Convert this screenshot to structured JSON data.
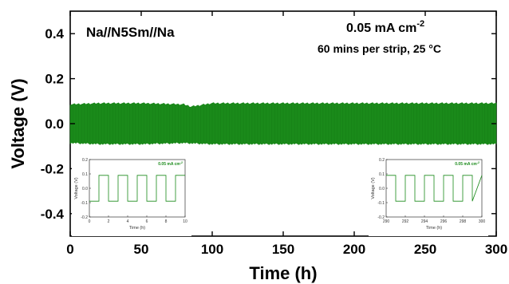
{
  "chart_data": [
    {
      "type": "line",
      "xlabel": "Time (h)",
      "ylabel": "Voltage (V)",
      "xlim": [
        0,
        300
      ],
      "ylim": [
        -0.5,
        0.5
      ],
      "xticks": [
        0,
        50,
        100,
        150,
        200,
        250,
        300
      ],
      "yticks": [
        -0.4,
        -0.2,
        0.0,
        0.2,
        0.4
      ],
      "sample_label": "Na//N5Sm//Na",
      "current_density": {
        "base": "0.05 mA cm",
        "exp": "-2"
      },
      "condition": "60 mins per strip, 25 °C",
      "series": [
        {
          "color": "#1a8a1a",
          "description_values": "square-wave voltage oscillating between approximately +0.09 V and -0.09 V over 0-300 h",
          "upper_envelope": [
            [
              0,
              0.085
            ],
            [
              20,
              0.09
            ],
            [
              50,
              0.09
            ],
            [
              80,
              0.085
            ],
            [
              85,
              0.075
            ],
            [
              100,
              0.09
            ],
            [
              150,
              0.09
            ],
            [
              200,
              0.09
            ],
            [
              250,
              0.09
            ],
            [
              300,
              0.09
            ]
          ],
          "lower_envelope": [
            [
              0,
              -0.085
            ],
            [
              20,
              -0.09
            ],
            [
              50,
              -0.09
            ],
            [
              80,
              -0.085
            ],
            [
              100,
              -0.09
            ],
            [
              150,
              -0.09
            ],
            [
              200,
              -0.09
            ],
            [
              250,
              -0.09
            ],
            [
              300,
              -0.09
            ]
          ]
        }
      ],
      "grid": false
    },
    {
      "type": "line",
      "inset": "left",
      "xlabel": "Time (h)",
      "ylabel": "Voltage (V)",
      "xlim": [
        0,
        10
      ],
      "ylim": [
        -0.2,
        0.2
      ],
      "xticks": [
        0,
        2,
        4,
        6,
        8,
        10
      ],
      "yticks": [
        -0.2,
        -0.1,
        0.0,
        0.1,
        0.2
      ],
      "annotation": {
        "base": "0.05 mA cm",
        "exp": "-2"
      },
      "series": [
        {
          "color": "#1a8a1a",
          "x": [
            0,
            1,
            1,
            2,
            2,
            3,
            3,
            4,
            4,
            5,
            5,
            6,
            6,
            7,
            7,
            8,
            8,
            9,
            9,
            10
          ],
          "y": [
            -0.09,
            -0.09,
            0.09,
            0.09,
            -0.09,
            -0.09,
            0.09,
            0.09,
            -0.09,
            -0.09,
            0.09,
            0.09,
            -0.09,
            -0.09,
            0.09,
            0.09,
            -0.09,
            -0.09,
            0.09,
            0.09
          ]
        }
      ]
    },
    {
      "type": "line",
      "inset": "right",
      "xlabel": "Time (h)",
      "ylabel": "Voltage (V)",
      "xlim": [
        290,
        300
      ],
      "ylim": [
        -0.2,
        0.2
      ],
      "xticks": [
        290,
        292,
        294,
        296,
        298,
        300
      ],
      "yticks": [
        -0.2,
        -0.1,
        0.0,
        0.1,
        0.2
      ],
      "annotation": {
        "base": "0.05 mA cm",
        "exp": "-2"
      },
      "series": [
        {
          "color": "#1a8a1a",
          "x": [
            290,
            291,
            291,
            292,
            292,
            293,
            293,
            294,
            294,
            295,
            295,
            296,
            296,
            297,
            297,
            298,
            298,
            299,
            299,
            300
          ],
          "y": [
            0.09,
            0.09,
            -0.09,
            -0.09,
            0.09,
            0.09,
            -0.09,
            -0.09,
            0.09,
            0.09,
            -0.09,
            -0.09,
            0.09,
            0.09,
            -0.09,
            -0.09,
            0.09,
            0.09,
            -0.09,
            0.09
          ]
        }
      ]
    }
  ]
}
